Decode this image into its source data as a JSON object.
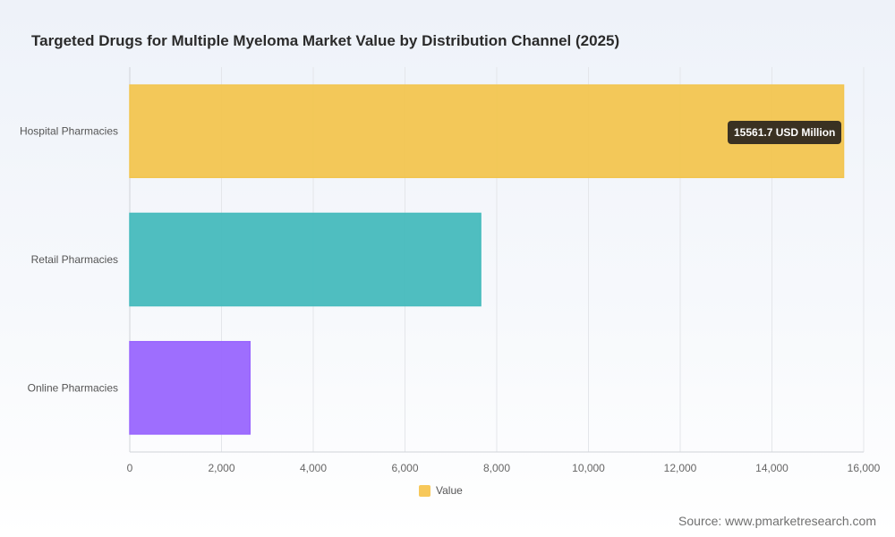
{
  "chart_data": {
    "type": "bar",
    "orientation": "horizontal",
    "title": "Targeted Drugs for Multiple Myeloma Market Value by Distribution Channel (2025)",
    "categories": [
      "Hospital Pharmacies",
      "Retail Pharmacies",
      "Online Pharmacies"
    ],
    "series": [
      {
        "name": "Value",
        "values": [
          15561.7,
          7650,
          2620
        ]
      }
    ],
    "bar_colors": [
      "#f2c550",
      "#46bbbd",
      "#9966fe"
    ],
    "xlim": [
      0,
      16000
    ],
    "xticks": [
      0,
      2000,
      4000,
      6000,
      8000,
      10000,
      12000,
      14000,
      16000
    ],
    "xtick_labels": [
      "0",
      "2,000",
      "4,000",
      "6,000",
      "8,000",
      "10,000",
      "12,000",
      "14,000",
      "16,000"
    ],
    "grid": true,
    "legend": {
      "position": "bottom",
      "label": "Value",
      "color": "#f7c85a"
    },
    "tooltip": "15561.7 USD Million"
  },
  "source": "Source: www.pmarketresearch.com"
}
